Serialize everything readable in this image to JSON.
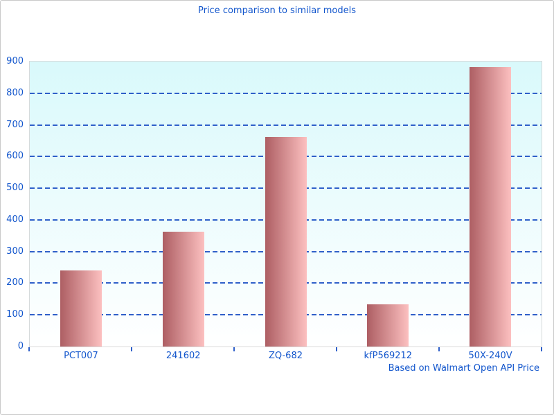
{
  "title": "Price comparison to similar models",
  "footer": "Based on Walmart Open API Price",
  "colors": {
    "text_blue": "#1155cc",
    "grid_blue": "#2e5fc9",
    "plot_border": "#d6dadb",
    "axis_line": "#d8d8d8",
    "outer_border": "#c9c9c9",
    "plot_bg_top": "#d9f9fb",
    "plot_bg_bottom": "#ffffff",
    "bar_gradient_left": "#ad5e63",
    "bar_gradient_right": "#fcc0c0"
  },
  "chart_data": {
    "type": "bar",
    "title": "Price comparison to similar models",
    "categories": [
      "PCT007",
      "241602",
      "ZQ-682",
      "kfP569212",
      "50X-240V"
    ],
    "values": [
      240,
      362,
      661,
      133,
      882
    ],
    "xlabel": "",
    "ylabel": "",
    "ylim": [
      0,
      900
    ],
    "yticks": [
      0,
      100,
      200,
      300,
      400,
      500,
      600,
      700,
      800,
      900
    ],
    "grid": "horizontal-dashed",
    "legend": "none",
    "bar_orientation": "vertical",
    "annotation": "Based on Walmart Open API Price",
    "annotation_position": "bottom-right"
  }
}
